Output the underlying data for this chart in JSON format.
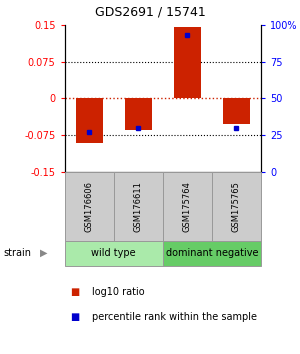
{
  "title": "GDS2691 / 15741",
  "samples": [
    "GSM176606",
    "GSM176611",
    "GSM175764",
    "GSM175765"
  ],
  "log10_ratio": [
    -0.092,
    -0.065,
    0.145,
    -0.052
  ],
  "percentile_rank": [
    27,
    30,
    93,
    30
  ],
  "groups": [
    {
      "name": "wild type",
      "samples": [
        0,
        1
      ],
      "color": "#aaeaaa"
    },
    {
      "name": "dominant negative",
      "samples": [
        2,
        3
      ],
      "color": "#66cc66"
    }
  ],
  "ylim": [
    -0.15,
    0.15
  ],
  "yticks_left": [
    -0.15,
    -0.075,
    0,
    0.075,
    0.15
  ],
  "yticks_left_labels": [
    "-0.15",
    "-0.075",
    "0",
    "0.075",
    "0.15"
  ],
  "yticks_right": [
    0,
    25,
    50,
    75,
    100
  ],
  "yticks_right_labels": [
    "0",
    "25",
    "50",
    "75",
    "100%"
  ],
  "bar_color": "#cc2200",
  "dot_color": "#0000cc",
  "bar_width": 0.55,
  "group_label": "strain",
  "legend_items": [
    "log10 ratio",
    "percentile rank within the sample"
  ],
  "hline_color_zero": "#cc2200",
  "hline_color_dotted": "#000000",
  "sample_box_color": "#cccccc",
  "title_fontsize": 9,
  "axis_fontsize": 7,
  "sample_fontsize": 6,
  "group_fontsize": 7,
  "legend_fontsize": 7
}
